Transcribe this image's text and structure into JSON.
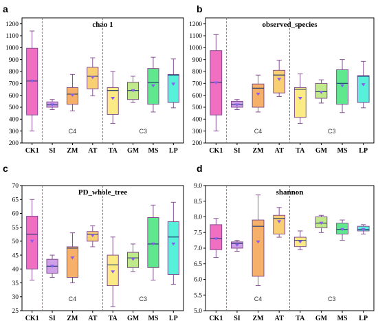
{
  "chart_data": [
    {
      "panel": "a",
      "type": "box",
      "title": "chao 1",
      "categories": [
        "CK1",
        "SI",
        "ZM",
        "AT",
        "TA",
        "GM",
        "MS",
        "LP"
      ],
      "ylim": [
        200,
        1250
      ],
      "yticks": [
        200,
        300,
        400,
        500,
        600,
        700,
        800,
        900,
        1000,
        1100,
        1200
      ],
      "boxes": [
        {
          "min": 300,
          "q1": 435,
          "median": 720,
          "q3": 995,
          "max": 1140,
          "mean": 720
        },
        {
          "min": 480,
          "q1": 500,
          "median": 520,
          "q3": 545,
          "max": 565,
          "mean": 520
        },
        {
          "min": 470,
          "q1": 525,
          "median": 610,
          "q3": 665,
          "max": 775,
          "mean": 600
        },
        {
          "min": 595,
          "q1": 655,
          "median": 760,
          "q3": 835,
          "max": 915,
          "mean": 750
        },
        {
          "min": 365,
          "q1": 440,
          "median": 640,
          "q3": 665,
          "max": 800,
          "mean": 575
        },
        {
          "min": 540,
          "q1": 565,
          "median": 640,
          "q3": 710,
          "max": 760,
          "mean": 640
        },
        {
          "min": 460,
          "q1": 525,
          "median": 705,
          "q3": 825,
          "max": 920,
          "mean": 680
        },
        {
          "min": 495,
          "q1": 540,
          "median": 770,
          "q3": 775,
          "max": 905,
          "mean": 695
        }
      ],
      "group_labels": [
        {
          "text": "C4"
        },
        {
          "text": "C3"
        }
      ]
    },
    {
      "panel": "b",
      "type": "box",
      "title": "observed_species",
      "categories": [
        "CK1",
        "SI",
        "ZM",
        "AT",
        "TA",
        "GM",
        "MS",
        "LP"
      ],
      "ylim": [
        200,
        1250
      ],
      "yticks": [
        200,
        300,
        400,
        500,
        600,
        700,
        800,
        900,
        1000,
        1100,
        1200
      ],
      "boxes": [
        {
          "min": 300,
          "q1": 435,
          "median": 710,
          "q3": 975,
          "max": 1110,
          "mean": 705
        },
        {
          "min": 480,
          "q1": 500,
          "median": 525,
          "q3": 550,
          "max": 565,
          "mean": 520
        },
        {
          "min": 460,
          "q1": 500,
          "median": 660,
          "q3": 695,
          "max": 770,
          "mean": 610
        },
        {
          "min": 590,
          "q1": 620,
          "median": 770,
          "q3": 810,
          "max": 895,
          "mean": 735
        },
        {
          "min": 365,
          "q1": 415,
          "median": 650,
          "q3": 665,
          "max": 780,
          "mean": 575
        },
        {
          "min": 535,
          "q1": 575,
          "median": 630,
          "q3": 700,
          "max": 730,
          "mean": 625
        },
        {
          "min": 455,
          "q1": 525,
          "median": 700,
          "q3": 815,
          "max": 900,
          "mean": 680
        },
        {
          "min": 495,
          "q1": 540,
          "median": 760,
          "q3": 765,
          "max": 885,
          "mean": 690
        }
      ],
      "group_labels": [
        {
          "text": "C4"
        },
        {
          "text": "C3"
        }
      ]
    },
    {
      "panel": "c",
      "type": "box",
      "title": "PD_whole_tree",
      "categories": [
        "CK1",
        "SI",
        "ZM",
        "AT",
        "TA",
        "GM",
        "MS",
        "LP"
      ],
      "ylim": [
        25,
        70
      ],
      "yticks": [
        25,
        30,
        35,
        40,
        45,
        50,
        55,
        60,
        65,
        70
      ],
      "boxes": [
        {
          "min": 36,
          "q1": 40,
          "median": 52.5,
          "q3": 59,
          "max": 65,
          "mean": 50
        },
        {
          "min": 37,
          "q1": 38.5,
          "median": 41,
          "q3": 43.5,
          "max": 45,
          "mean": 41
        },
        {
          "min": 35,
          "q1": 37,
          "median": 47.5,
          "q3": 48,
          "max": 53,
          "mean": 44
        },
        {
          "min": 48,
          "q1": 50,
          "median": 52.5,
          "q3": 53.5,
          "max": 55.5,
          "mean": 52
        },
        {
          "min": 26.5,
          "q1": 34,
          "median": 41.5,
          "q3": 45,
          "max": 51.5,
          "mean": 39
        },
        {
          "min": 39,
          "q1": 40.5,
          "median": 44,
          "q3": 46,
          "max": 49,
          "mean": 43.5
        },
        {
          "min": 36,
          "q1": 40.5,
          "median": 49,
          "q3": 58.5,
          "max": 63,
          "mean": 49
        },
        {
          "min": 34.5,
          "q1": 38,
          "median": 51.5,
          "q3": 57,
          "max": 64,
          "mean": 49
        }
      ],
      "group_labels": [
        {
          "text": "C4"
        },
        {
          "text": "C3"
        }
      ]
    },
    {
      "panel": "d",
      "type": "box",
      "title": "shannon",
      "categories": [
        "CK1",
        "SI",
        "ZM",
        "AT",
        "TA",
        "GM",
        "MS",
        "LP"
      ],
      "ylim": [
        5.0,
        9.0
      ],
      "yticks": [
        5.0,
        5.5,
        6.0,
        6.5,
        7.0,
        7.5,
        8.0,
        8.5,
        9.0
      ],
      "boxes": [
        {
          "min": 6.7,
          "q1": 6.95,
          "median": 7.3,
          "q3": 7.75,
          "max": 7.95,
          "mean": 7.3
        },
        {
          "min": 6.9,
          "q1": 7.0,
          "median": 7.15,
          "q3": 7.2,
          "max": 7.25,
          "mean": 7.1
        },
        {
          "min": 5.8,
          "q1": 6.1,
          "median": 7.7,
          "q3": 7.9,
          "max": 8.7,
          "mean": 7.2
        },
        {
          "min": 7.35,
          "q1": 7.45,
          "median": 7.95,
          "q3": 8.05,
          "max": 8.3,
          "mean": 7.85
        },
        {
          "min": 6.95,
          "q1": 7.05,
          "median": 7.25,
          "q3": 7.35,
          "max": 7.55,
          "mean": 7.2
        },
        {
          "min": 7.5,
          "q1": 7.65,
          "median": 7.8,
          "q3": 8.0,
          "max": 8.05,
          "mean": 7.8
        },
        {
          "min": 7.25,
          "q1": 7.45,
          "median": 7.6,
          "q3": 7.8,
          "max": 7.9,
          "mean": 7.6
        },
        {
          "min": 7.45,
          "q1": 7.55,
          "median": 7.6,
          "q3": 7.7,
          "max": 7.75,
          "mean": 7.6
        }
      ],
      "group_labels": [
        {
          "text": "C4"
        },
        {
          "text": "C3"
        }
      ]
    }
  ],
  "colors": {
    "box_fills": [
      "#f06fc0",
      "#cfa0e6",
      "#f6b06a",
      "#f9cf74",
      "#faeb84",
      "#bfe98a",
      "#5fe88d",
      "#57f0d8"
    ],
    "whisker": "#7a3f8a",
    "median_line": "#1f3a6e",
    "mean_marker": "#8a5cf0",
    "separator": "#c0506a",
    "axis": "#000000"
  }
}
